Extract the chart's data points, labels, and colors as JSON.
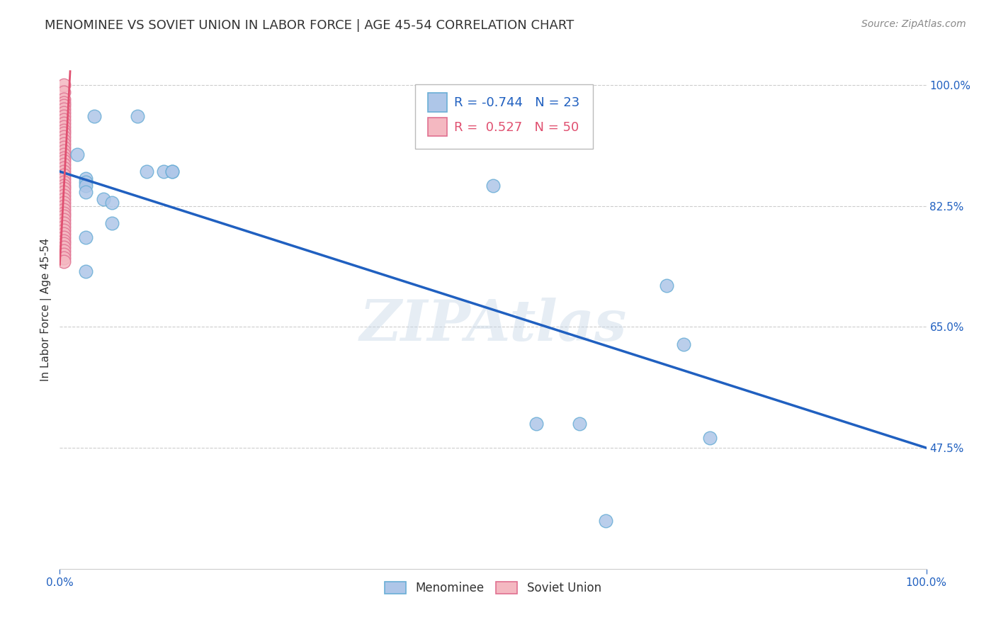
{
  "title": "MENOMINEE VS SOVIET UNION IN LABOR FORCE | AGE 45-54 CORRELATION CHART",
  "source_text": "Source: ZipAtlas.com",
  "ylabel": "In Labor Force | Age 45-54",
  "xlim": [
    0.0,
    1.0
  ],
  "ylim": [
    0.3,
    1.05
  ],
  "ytick_labels_right": [
    "100.0%",
    "82.5%",
    "65.0%",
    "47.5%"
  ],
  "ytick_positions_right": [
    1.0,
    0.825,
    0.65,
    0.475
  ],
  "menominee_x": [
    0.04,
    0.09,
    0.02,
    0.1,
    0.12,
    0.13,
    0.13,
    0.03,
    0.03,
    0.03,
    0.03,
    0.05,
    0.06,
    0.06,
    0.03,
    0.03,
    0.5,
    0.7,
    0.72,
    0.55,
    0.75,
    0.6,
    0.63
  ],
  "menominee_y": [
    0.955,
    0.955,
    0.9,
    0.875,
    0.875,
    0.875,
    0.875,
    0.865,
    0.86,
    0.855,
    0.845,
    0.835,
    0.83,
    0.8,
    0.78,
    0.73,
    0.855,
    0.71,
    0.625,
    0.51,
    0.49,
    0.51,
    0.37
  ],
  "soviet_x": [
    0.005,
    0.005,
    0.005,
    0.005,
    0.005,
    0.005,
    0.005,
    0.005,
    0.005,
    0.005,
    0.005,
    0.005,
    0.005,
    0.005,
    0.005,
    0.005,
    0.005,
    0.005,
    0.005,
    0.005,
    0.005,
    0.005,
    0.005,
    0.005,
    0.005,
    0.005,
    0.005,
    0.005,
    0.005,
    0.005,
    0.005,
    0.005,
    0.005,
    0.005,
    0.005,
    0.005,
    0.005,
    0.005,
    0.005,
    0.005,
    0.005,
    0.005,
    0.005,
    0.005,
    0.005,
    0.005,
    0.005,
    0.005,
    0.005,
    0.005
  ],
  "soviet_y": [
    1.0,
    0.99,
    0.98,
    0.975,
    0.97,
    0.965,
    0.96,
    0.955,
    0.95,
    0.945,
    0.94,
    0.935,
    0.93,
    0.925,
    0.92,
    0.915,
    0.91,
    0.905,
    0.9,
    0.895,
    0.89,
    0.885,
    0.88,
    0.875,
    0.87,
    0.865,
    0.86,
    0.855,
    0.85,
    0.845,
    0.84,
    0.835,
    0.83,
    0.825,
    0.82,
    0.815,
    0.81,
    0.805,
    0.8,
    0.795,
    0.79,
    0.785,
    0.78,
    0.775,
    0.77,
    0.765,
    0.76,
    0.755,
    0.75,
    0.745
  ],
  "menominee_color": "#aec6e8",
  "soviet_color": "#f4b8c1",
  "menominee_edge": "#6aaed6",
  "soviet_edge": "#e07090",
  "trend_blue_color": "#2060c0",
  "trend_pink_color": "#e05070",
  "R_menominee": "-0.744",
  "N_menominee": "23",
  "R_soviet": "0.527",
  "N_soviet": "50",
  "watermark_text": "ZIPAtlas",
  "watermark_color": "#c8d8e8",
  "watermark_alpha": 0.45,
  "grid_color": "#cccccc",
  "grid_linestyle": "--",
  "background_color": "#ffffff",
  "title_fontsize": 13,
  "axis_label_fontsize": 11,
  "trend_line_start_x": 0.0,
  "trend_line_start_y": 0.875,
  "trend_line_end_x": 1.0,
  "trend_line_end_y": 0.475
}
